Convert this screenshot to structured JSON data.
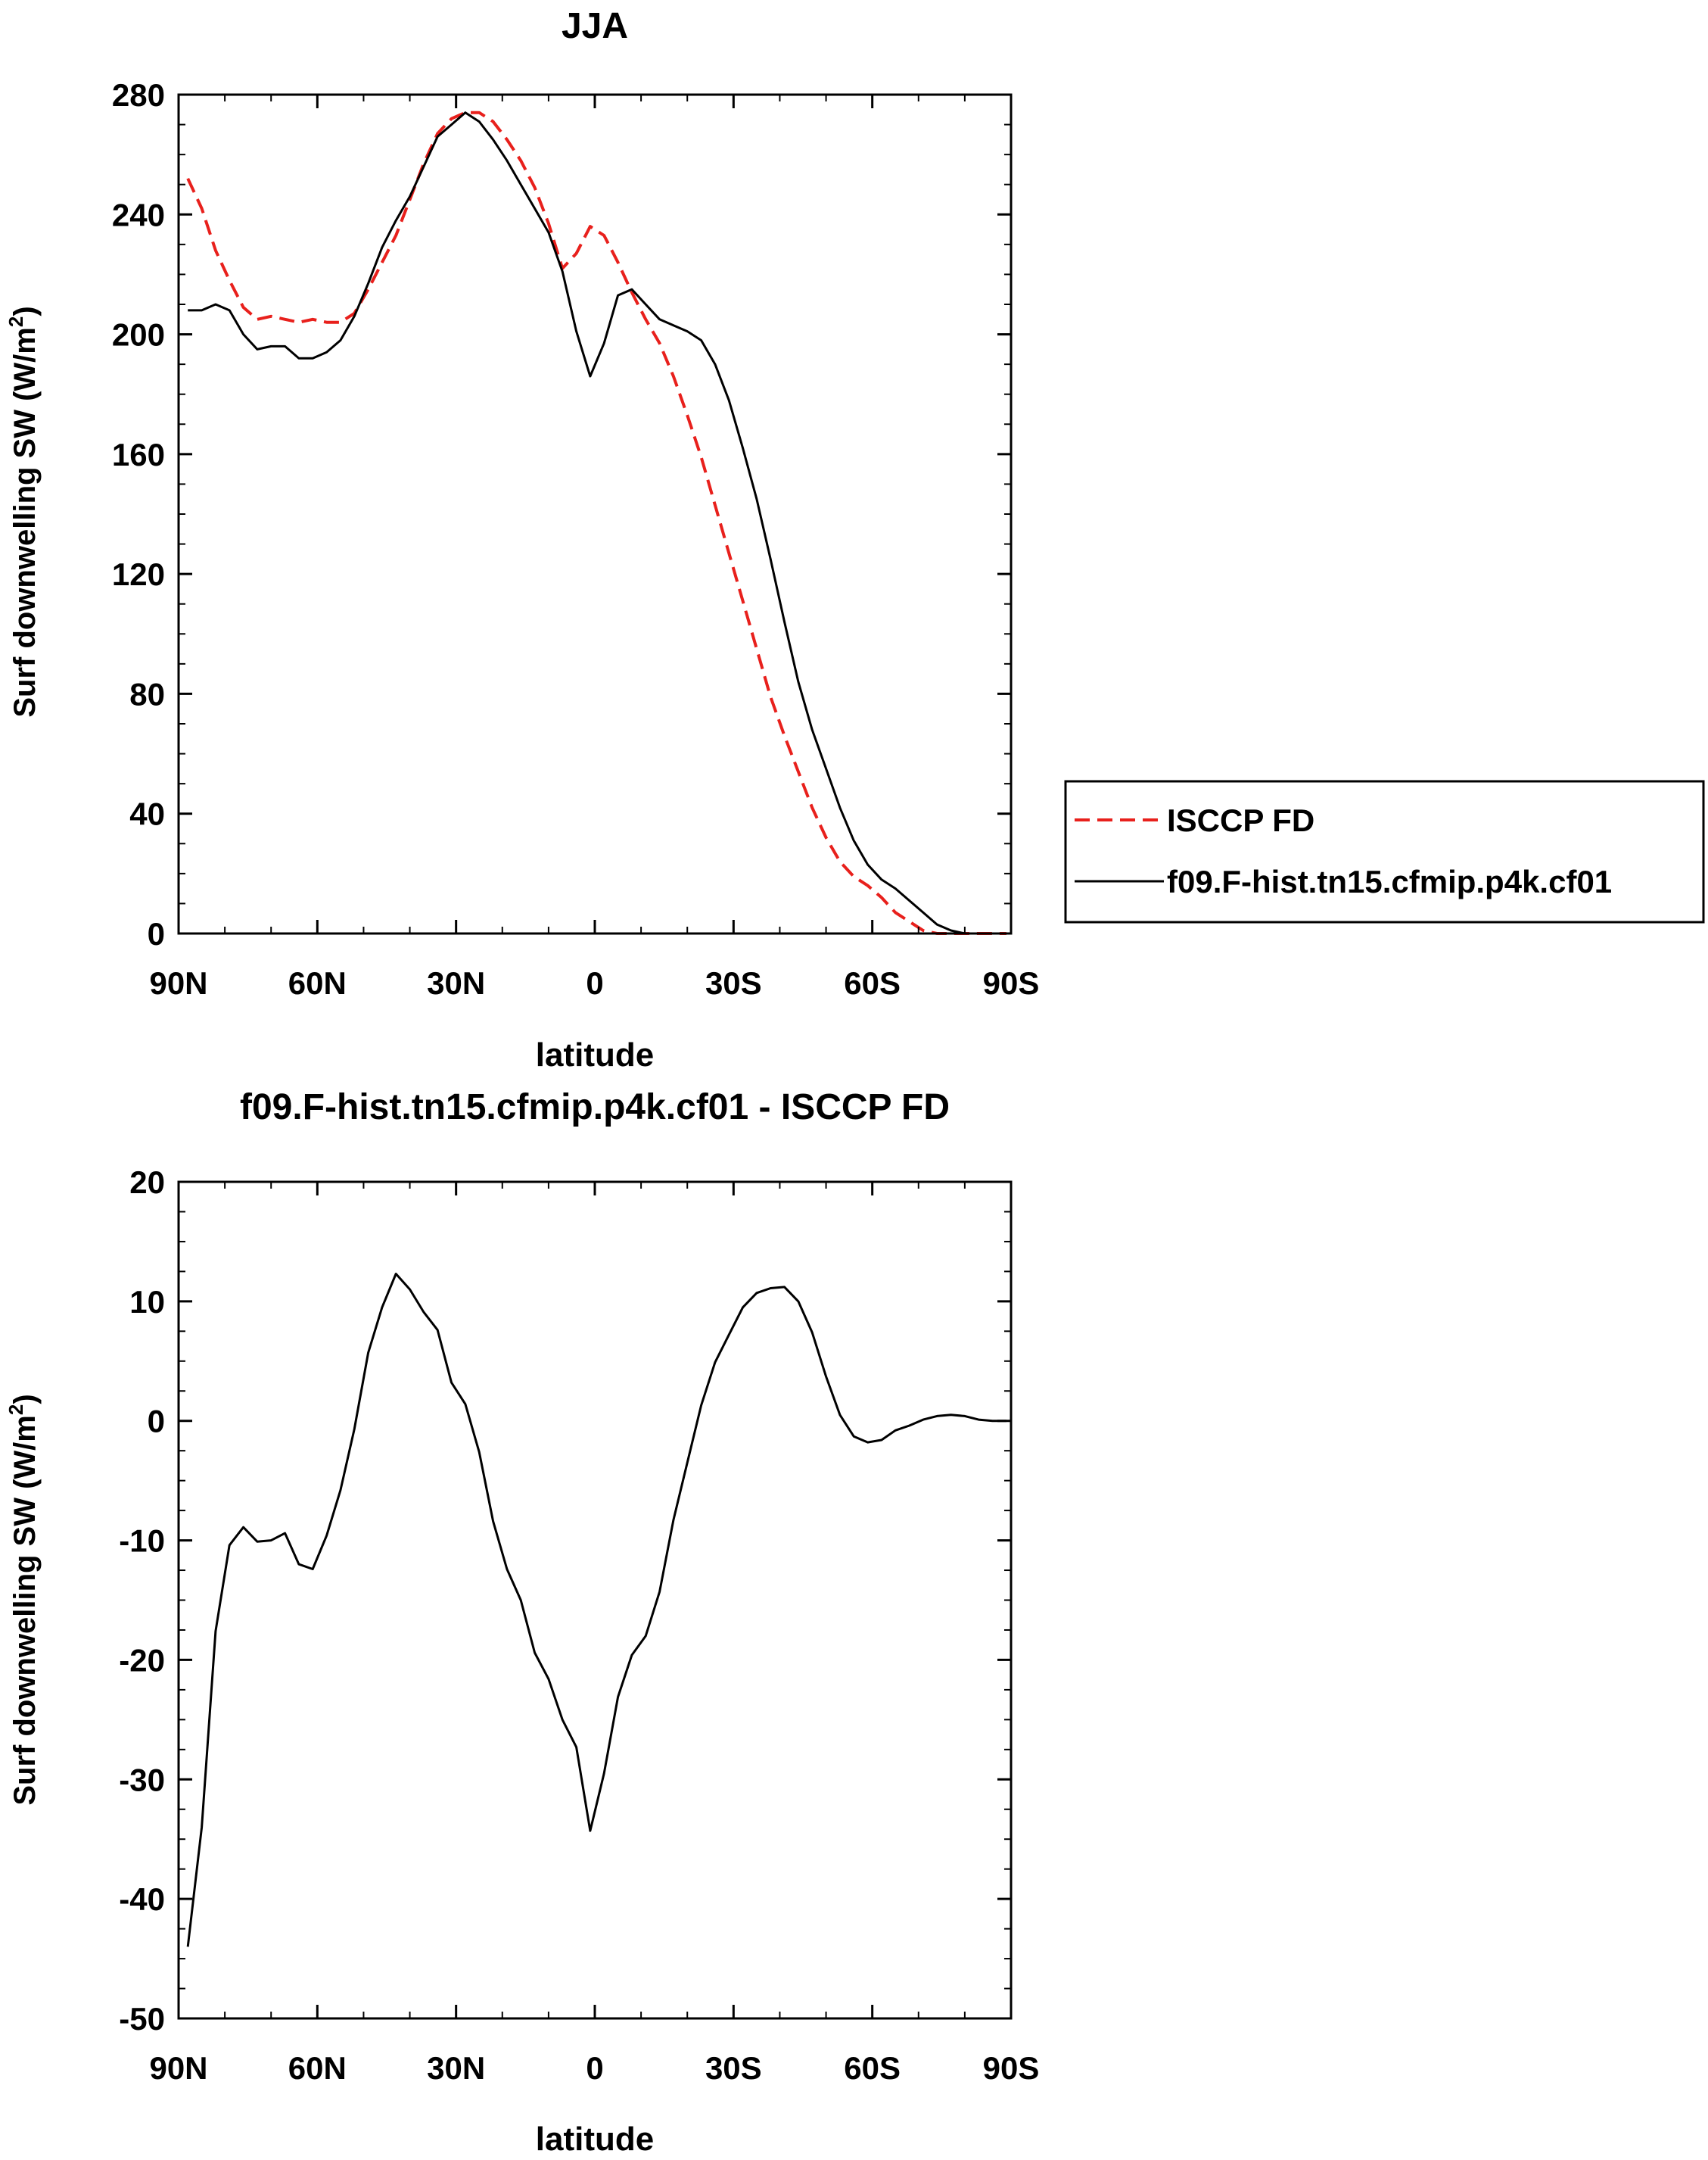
{
  "figure": {
    "panels": {
      "top": {
        "title": "JJA",
        "ylabel_main": "Surf downwelling SW (W/m",
        "ylabel_sup": "2",
        "ylabel_close": ")",
        "xlabel": "latitude"
      },
      "bottom": {
        "title": "f09.F-hist.tn15.cfmip.p4k.cf01 - ISCCP FD",
        "ylabel_main": "Surf downwelling SW (W/m",
        "ylabel_sup": "2",
        "ylabel_close": ")",
        "xlabel": "latitude"
      }
    },
    "legend": {
      "entries": [
        "ISCCP FD",
        "f09.F-hist.tn15.cfmip.p4k.cf01"
      ]
    }
  },
  "chart_data": [
    {
      "type": "line",
      "title": "JJA",
      "xlabel": "latitude",
      "ylabel": "Surf downwelling SW (W/m2)",
      "xlim": [
        90,
        -90
      ],
      "ylim": [
        0,
        280
      ],
      "xticks": [
        90,
        60,
        30,
        0,
        -30,
        -60,
        -90
      ],
      "xtick_labels": [
        "90N",
        "60N",
        "30N",
        "0",
        "30S",
        "60S",
        "90S"
      ],
      "yticks": [
        0,
        40,
        80,
        120,
        160,
        200,
        240,
        280
      ],
      "ytick_labels": [
        "0",
        "40",
        "80",
        "120",
        "160",
        "200",
        "240",
        "280"
      ],
      "grid": false,
      "legend_position": "right",
      "series": [
        {
          "name": "ISCCP FD",
          "color": "#e8201c",
          "dash": "dashed",
          "x": [
            88,
            85,
            82,
            79,
            76,
            73,
            70,
            67,
            64,
            61,
            58,
            55,
            52,
            49,
            46,
            43,
            40,
            37,
            34,
            31,
            28,
            25,
            22,
            19,
            16,
            13,
            10,
            7,
            4,
            1,
            -2,
            -5,
            -8,
            -11,
            -14,
            -17,
            -20,
            -23,
            -26,
            -29,
            -32,
            -35,
            -38,
            -41,
            -44,
            -47,
            -50,
            -53,
            -56,
            -59,
            -62,
            -65,
            -68,
            -71,
            -74,
            -77,
            -80,
            -83,
            -86,
            -89
          ],
          "y": [
            252,
            242,
            228,
            218,
            209,
            205,
            206,
            205,
            204,
            205,
            204,
            204,
            207,
            215,
            224,
            233,
            245,
            257,
            267,
            272,
            274,
            274,
            271,
            265,
            258,
            249,
            237,
            222,
            227,
            236,
            233,
            224,
            214,
            205,
            197,
            186,
            173,
            159,
            143,
            127,
            111,
            95,
            79,
            66,
            54,
            42,
            32,
            24,
            19,
            16,
            12,
            7,
            4,
            1,
            0,
            0,
            0,
            0,
            0,
            0
          ]
        },
        {
          "name": "f09.F-hist.tn15.cfmip.p4k.cf01",
          "color": "#000000",
          "dash": "solid",
          "x": [
            88,
            85,
            82,
            79,
            76,
            73,
            70,
            67,
            64,
            61,
            58,
            55,
            52,
            49,
            46,
            43,
            40,
            37,
            34,
            31,
            28,
            25,
            22,
            19,
            16,
            13,
            10,
            7,
            4,
            1,
            -2,
            -5,
            -8,
            -11,
            -14,
            -17,
            -20,
            -23,
            -26,
            -29,
            -32,
            -35,
            -38,
            -41,
            -44,
            -47,
            -50,
            -53,
            -56,
            -59,
            -62,
            -65,
            -68,
            -71,
            -74,
            -77,
            -80,
            -83,
            -86,
            -89
          ],
          "y": [
            208,
            208,
            210,
            208,
            200,
            195,
            196,
            196,
            192,
            192,
            194,
            198,
            206,
            217,
            229,
            238,
            246,
            256,
            266,
            270,
            274,
            271,
            265,
            258,
            250,
            242,
            234,
            221,
            201,
            186,
            197,
            213,
            215,
            210,
            205,
            203,
            201,
            198,
            190,
            178,
            162,
            145,
            125,
            104,
            84,
            68,
            55,
            42,
            31,
            23,
            18,
            15,
            11,
            7,
            3,
            1,
            0,
            0,
            0,
            0
          ]
        }
      ]
    },
    {
      "type": "line",
      "title": "f09.F-hist.tn15.cfmip.p4k.cf01 - ISCCP FD",
      "xlabel": "latitude",
      "ylabel": "Surf downwelling SW (W/m2)",
      "xlim": [
        90,
        -90
      ],
      "ylim": [
        -50,
        20
      ],
      "xticks": [
        90,
        60,
        30,
        0,
        -30,
        -60,
        -90
      ],
      "xtick_labels": [
        "90N",
        "60N",
        "30N",
        "0",
        "30S",
        "60S",
        "90S"
      ],
      "yticks": [
        -50,
        -40,
        -30,
        -20,
        -10,
        0,
        10,
        20
      ],
      "ytick_labels": [
        "-50",
        "-40",
        "-30",
        "-20",
        "-10",
        "0",
        "10",
        "20"
      ],
      "grid": false,
      "series": [
        {
          "color": "#000000",
          "dash": "solid",
          "x": [
            88,
            85,
            82,
            79,
            76,
            73,
            70,
            67,
            64,
            61,
            58,
            55,
            52,
            49,
            46,
            43,
            40,
            37,
            34,
            31,
            28,
            25,
            22,
            19,
            16,
            13,
            10,
            7,
            4,
            1,
            -2,
            -5,
            -8,
            -11,
            -14,
            -17,
            -20,
            -23,
            -26,
            -29,
            -32,
            -35,
            -38,
            -41,
            -44,
            -47,
            -50,
            -53,
            -56,
            -59,
            -62,
            -65,
            -68,
            -71,
            -74,
            -77,
            -80,
            -83,
            -86,
            -89
          ],
          "y": [
            -44,
            -34,
            -17.6,
            -10.4,
            -8.9,
            -10.1,
            -10,
            -9.4,
            -12,
            -12.4,
            -9.6,
            -5.8,
            -0.7,
            5.7,
            9.5,
            12.3,
            11,
            9.1,
            7.6,
            3.2,
            1.4,
            -2.6,
            -8.4,
            -12.4,
            -15,
            -19.4,
            -21.6,
            -25,
            -27.3,
            -34.3,
            -29.5,
            -23.1,
            -19.6,
            -18,
            -14.3,
            -8.3,
            -3.5,
            1.3,
            4.9,
            7.2,
            9.5,
            10.7,
            11.1,
            11.2,
            10,
            7.4,
            3.7,
            0.5,
            -1.3,
            -1.8,
            -1.6,
            -0.8,
            -0.4,
            0.1,
            0.4,
            0.5,
            0.4,
            0.1,
            0,
            0
          ]
        }
      ]
    }
  ]
}
